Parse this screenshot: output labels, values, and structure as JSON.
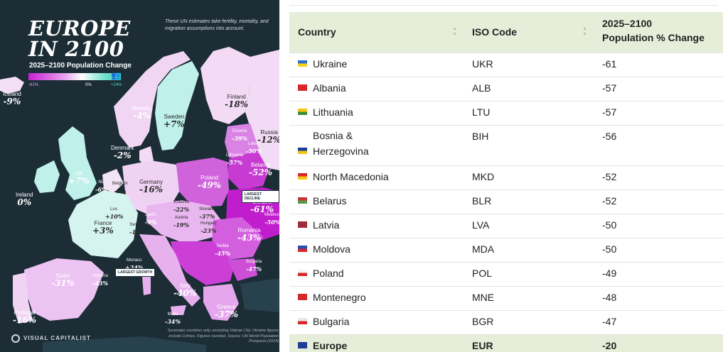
{
  "map": {
    "title_line1": "EUROPE",
    "title_line2": "IN 2100",
    "subtitle": "2025–2100 Population Change",
    "legend": {
      "min_label": "-61%",
      "mid_label": "0%",
      "max_label": "+24%",
      "people_icon": "👥"
    },
    "note": "These UN estimates take fertility, mortality, and migration assumptions into account.",
    "colors": {
      "background": "#1c2d36",
      "decline_strong": "#c81fd4",
      "decline_light": "#e9b7ef",
      "growth": "#bff0ea"
    },
    "labels": [
      {
        "name": "Iceland",
        "value": "-9%"
      },
      {
        "name": "Norway",
        "value": "-4%"
      },
      {
        "name": "Sweden",
        "value": "+7%"
      },
      {
        "name": "Finland",
        "value": "-18%"
      },
      {
        "name": "Russia",
        "value": "-12%"
      },
      {
        "name": "Estonia",
        "value": "-39%"
      },
      {
        "name": "Latvia",
        "value": "-50%"
      },
      {
        "name": "Lithuania",
        "value": "-57%"
      },
      {
        "name": "Denmark",
        "value": "-2%"
      },
      {
        "name": "UK",
        "value": "+7%"
      },
      {
        "name": "Ireland",
        "value": "0%"
      },
      {
        "name": "NL",
        "value": "-6%"
      },
      {
        "name": "Belgium",
        "value": "-5%"
      },
      {
        "name": "Germany",
        "value": "-16%"
      },
      {
        "name": "Poland",
        "value": "-49%"
      },
      {
        "name": "Belarus",
        "value": "-52%"
      },
      {
        "name": "Ukraine",
        "value": "-61%"
      },
      {
        "name": "Moldova",
        "value": "-50%"
      },
      {
        "name": "Lux.",
        "value": "+10%"
      },
      {
        "name": "France",
        "value": "+3%"
      },
      {
        "name": "Liech.",
        "value": "-9%"
      },
      {
        "name": "Czechia",
        "value": "-22%"
      },
      {
        "name": "Slovakia",
        "value": "-37%"
      },
      {
        "name": "Austria",
        "value": "-19%"
      },
      {
        "name": "Hungary",
        "value": "-23%"
      },
      {
        "name": "Switz.",
        "value": "-1%"
      },
      {
        "name": "Romania",
        "value": "-43%"
      },
      {
        "name": "Bulgaria",
        "value": "-47%"
      },
      {
        "name": "Serbia",
        "value": "-45%"
      },
      {
        "name": "Monaco",
        "value": "+24%"
      },
      {
        "name": "Spain",
        "value": "-31%"
      },
      {
        "name": "Andorra",
        "value": "-43%"
      },
      {
        "name": "Italy",
        "value": "-40%"
      },
      {
        "name": "Portugal",
        "value": "-16%"
      },
      {
        "name": "Malta",
        "value": "-34%"
      },
      {
        "name": "Greece",
        "value": "-37%"
      }
    ],
    "tags": {
      "largest_decline": "LARGEST DECLINE",
      "largest_growth": "LARGEST GROWTH"
    },
    "brand": "VISUAL CAPITALIST",
    "source_note": "Sovereign countries only, excluding Vatican City. Ukraine figures include Crimea. Figures rounded. Source: UN World Population Prospects (2024)"
  },
  "table": {
    "headers": {
      "country": "Country",
      "iso": "ISO Code",
      "change_line1": "2025–2100",
      "change_line2": "Population % Change"
    },
    "rows": [
      {
        "country": "Ukraine",
        "iso": "UKR",
        "change": "-61",
        "flag_top": "#2f6fd6",
        "flag_bottom": "#f2d21b"
      },
      {
        "country": "Albania",
        "iso": "ALB",
        "change": "-57",
        "flag_top": "#d8262b",
        "flag_bottom": "#d8262b"
      },
      {
        "country": "Lithuania",
        "iso": "LTU",
        "change": "-57",
        "flag_top": "#f5c51b",
        "flag_bottom": "#3c8a3a"
      },
      {
        "country": "Bosnia & Herzegovina",
        "iso": "BIH",
        "change": "-56",
        "flag_top": "#1f3c95",
        "flag_bottom": "#f2c419"
      },
      {
        "country": "North Macedonia",
        "iso": "MKD",
        "change": "-52",
        "flag_top": "#d8262b",
        "flag_bottom": "#f5c51b"
      },
      {
        "country": "Belarus",
        "iso": "BLR",
        "change": "-52",
        "flag_top": "#c5363a",
        "flag_bottom": "#5c9a4a"
      },
      {
        "country": "Latvia",
        "iso": "LVA",
        "change": "-50",
        "flag_top": "#9e2c3a",
        "flag_bottom": "#9e2c3a"
      },
      {
        "country": "Moldova",
        "iso": "MDA",
        "change": "-50",
        "flag_top": "#2a4fb0",
        "flag_bottom": "#d8262b"
      },
      {
        "country": "Poland",
        "iso": "POL",
        "change": "-49",
        "flag_top": "#f4f4f4",
        "flag_bottom": "#d8262b"
      },
      {
        "country": "Montenegro",
        "iso": "MNE",
        "change": "-48",
        "flag_top": "#d12a2a",
        "flag_bottom": "#d12a2a"
      },
      {
        "country": "Bulgaria",
        "iso": "BGR",
        "change": "-47",
        "flag_top": "#e8e8e8",
        "flag_bottom": "#d8262b"
      },
      {
        "country": "Europe",
        "iso": "EUR",
        "change": "-20",
        "flag_top": "#1f3c95",
        "flag_bottom": "#1f3c95"
      }
    ]
  }
}
